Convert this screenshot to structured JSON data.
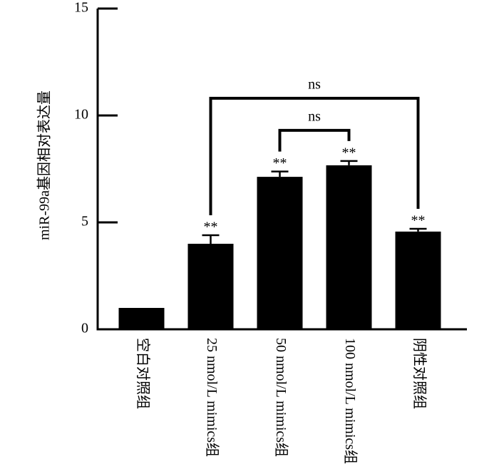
{
  "chart_data": {
    "type": "bar",
    "ylabel": "miR-99a基因相对表达量",
    "categories": [
      "空白对照组",
      "25 nmol/L mimics组",
      "50 nmol/L mimics组",
      "100 nmol/L mimics组",
      "阴性对照组"
    ],
    "values": [
      1.0,
      4.0,
      7.13,
      7.67,
      4.57
    ],
    "errors": [
      0,
      0.4,
      0.25,
      0.2,
      0.13
    ],
    "value_annotations": [
      null,
      "**",
      "**",
      "**",
      "**"
    ],
    "brackets": [
      {
        "from": 2,
        "to": 3,
        "label": "ns"
      },
      {
        "from": 1,
        "to": 4,
        "label": "ns"
      }
    ],
    "color": "#000000",
    "ylim": [
      0,
      15
    ],
    "yticks": [
      0,
      5,
      10,
      15
    ]
  }
}
